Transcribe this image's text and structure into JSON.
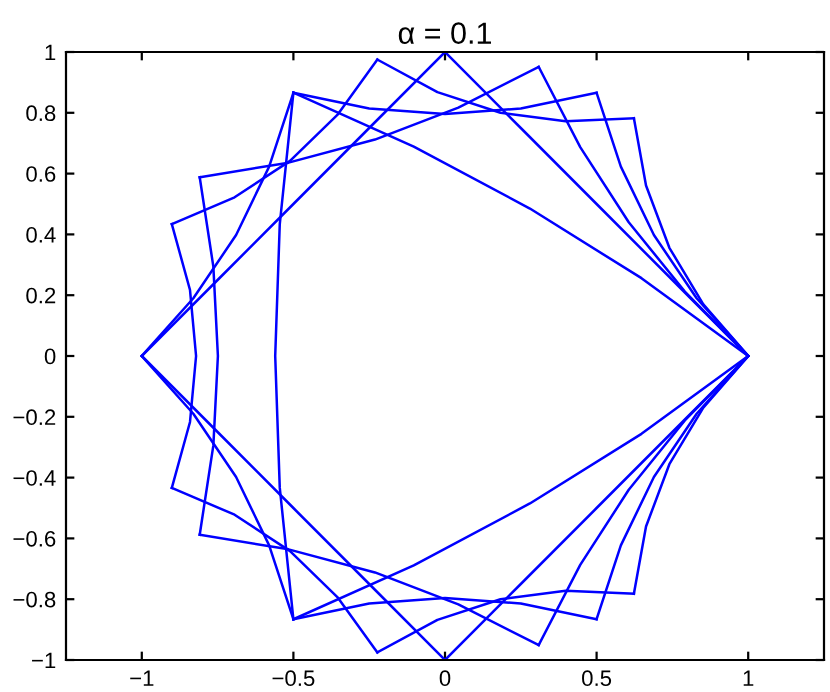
{
  "chart_data": {
    "type": "line",
    "title": "α = 0.1",
    "series": [
      {
        "color": "#0000ff",
        "x": [
          1,
          0.648,
          0.28,
          -0.103,
          -0.5
        ],
        "values": [
          0,
          0.256,
          0.485,
          0.689,
          0.866
        ]
      },
      {
        "color": "#0000ff",
        "x": [
          -0.5,
          -0.545,
          -0.56,
          -0.545,
          -0.5
        ],
        "values": [
          0.866,
          0.433,
          0,
          -0.433,
          -0.866
        ]
      },
      {
        "color": "#0000ff",
        "x": [
          -0.5,
          -0.103,
          0.28,
          0.648,
          1
        ],
        "values": [
          -0.866,
          -0.689,
          -0.485,
          -0.256,
          0
        ]
      },
      {
        "color": "#0000ff",
        "x": [
          1,
          0.75,
          0.5,
          0.25,
          0
        ],
        "values": [
          0,
          0.25,
          0.5,
          0.75,
          1
        ]
      },
      {
        "color": "#0000ff",
        "x": [
          0,
          -0.25,
          -0.5,
          -0.75,
          -1
        ],
        "values": [
          1,
          0.75,
          0.5,
          0.25,
          0
        ]
      },
      {
        "color": "#0000ff",
        "x": [
          -1,
          -0.75,
          -0.5,
          -0.25,
          0
        ],
        "values": [
          0,
          -0.25,
          -0.5,
          -0.75,
          -1
        ]
      },
      {
        "color": "#0000ff",
        "x": [
          0,
          0.25,
          0.5,
          0.75,
          1
        ],
        "values": [
          -1,
          -0.75,
          -0.5,
          -0.25,
          0
        ]
      },
      {
        "color": "#0000ff",
        "x": [
          1,
          0.791,
          0.606,
          0.446,
          0.309
        ],
        "values": [
          0,
          0.212,
          0.44,
          0.687,
          0.951
        ]
      },
      {
        "color": "#0000ff",
        "x": [
          0.309,
          0.044,
          -0.231,
          -0.516,
          -0.809
        ],
        "values": [
          0.951,
          0.817,
          0.712,
          0.636,
          0.588
        ]
      },
      {
        "color": "#0000ff",
        "x": [
          -0.809,
          -0.764,
          -0.749,
          -0.764,
          -0.809
        ],
        "values": [
          0.588,
          0.294,
          0,
          -0.294,
          -0.588
        ]
      },
      {
        "color": "#0000ff",
        "x": [
          -0.809,
          -0.516,
          -0.231,
          0.044,
          0.309
        ],
        "values": [
          -0.588,
          -0.636,
          -0.712,
          -0.817,
          -0.951
        ]
      },
      {
        "color": "#0000ff",
        "x": [
          0.309,
          0.446,
          0.606,
          0.791,
          1
        ],
        "values": [
          -0.951,
          -0.687,
          -0.44,
          -0.212,
          0
        ]
      },
      {
        "color": "#0000ff",
        "x": [
          1,
          0.83,
          0.689,
          0.58,
          0.5
        ],
        "values": [
          0,
          0.19,
          0.398,
          0.623,
          0.866
        ]
      },
      {
        "color": "#0000ff",
        "x": [
          0.5,
          0.25,
          0,
          -0.25,
          -0.5
        ],
        "values": [
          0.866,
          0.814,
          0.796,
          0.814,
          0.866
        ]
      },
      {
        "color": "#0000ff",
        "x": [
          -0.5,
          -0.58,
          -0.689,
          -0.83,
          -1
        ],
        "values": [
          0.866,
          0.623,
          0.398,
          0.19,
          0
        ]
      },
      {
        "color": "#0000ff",
        "x": [
          -1,
          -0.83,
          -0.689,
          -0.58,
          -0.5
        ],
        "values": [
          0,
          -0.19,
          -0.398,
          -0.623,
          -0.866
        ]
      },
      {
        "color": "#0000ff",
        "x": [
          -0.5,
          -0.25,
          0,
          0.25,
          0.5
        ],
        "values": [
          -0.866,
          -0.814,
          -0.796,
          -0.814,
          -0.866
        ]
      },
      {
        "color": "#0000ff",
        "x": [
          0.5,
          0.58,
          0.689,
          0.83,
          1
        ],
        "values": [
          -0.866,
          -0.623,
          -0.398,
          -0.19,
          0
        ]
      },
      {
        "color": "#0000ff",
        "x": [
          1,
          0.852,
          0.74,
          0.663,
          0.623
        ],
        "values": [
          0,
          0.17,
          0.356,
          0.561,
          0.782
        ]
      },
      {
        "color": "#0000ff",
        "x": [
          0.623,
          0.398,
          0.183,
          -0.025,
          -0.223
        ],
        "values": [
          0.782,
          0.772,
          0.8,
          0.868,
          0.975
        ]
      },
      {
        "color": "#0000ff",
        "x": [
          -0.223,
          -0.355,
          -0.511,
          -0.694,
          -0.901
        ],
        "values": [
          0.975,
          0.793,
          0.642,
          0.522,
          0.434
        ]
      },
      {
        "color": "#0000ff",
        "x": [
          -0.901,
          -0.841,
          -0.821,
          -0.841,
          -0.901
        ],
        "values": [
          0.434,
          0.217,
          0,
          -0.217,
          -0.434
        ]
      },
      {
        "color": "#0000ff",
        "x": [
          -0.901,
          -0.694,
          -0.511,
          -0.355,
          -0.223
        ],
        "values": [
          -0.434,
          -0.522,
          -0.642,
          -0.793,
          -0.975
        ]
      },
      {
        "color": "#0000ff",
        "x": [
          -0.223,
          -0.025,
          0.183,
          0.398,
          0.623
        ],
        "values": [
          -0.975,
          -0.868,
          -0.8,
          -0.772,
          -0.782
        ]
      },
      {
        "color": "#0000ff",
        "x": [
          0.623,
          0.663,
          0.74,
          0.852,
          1
        ],
        "values": [
          -0.782,
          -0.561,
          -0.356,
          -0.17,
          0
        ]
      }
    ],
    "xlim": [
      -1.25,
      1.25
    ],
    "ylim": [
      -1,
      1
    ],
    "xticks": [
      {
        "value": -1,
        "label": "−1"
      },
      {
        "value": -0.5,
        "label": "−0.5"
      },
      0,
      0.5,
      1
    ],
    "yticks": [
      {
        "value": -1,
        "label": "−1"
      },
      {
        "value": -0.8,
        "label": "−0.8"
      },
      {
        "value": -0.6,
        "label": "−0.6"
      },
      {
        "value": -0.4,
        "label": "−0.4"
      },
      {
        "value": -0.2,
        "label": "−0.2"
      },
      0,
      0.2,
      0.4,
      0.6,
      0.8,
      1
    ],
    "grid": false,
    "legend": false
  }
}
